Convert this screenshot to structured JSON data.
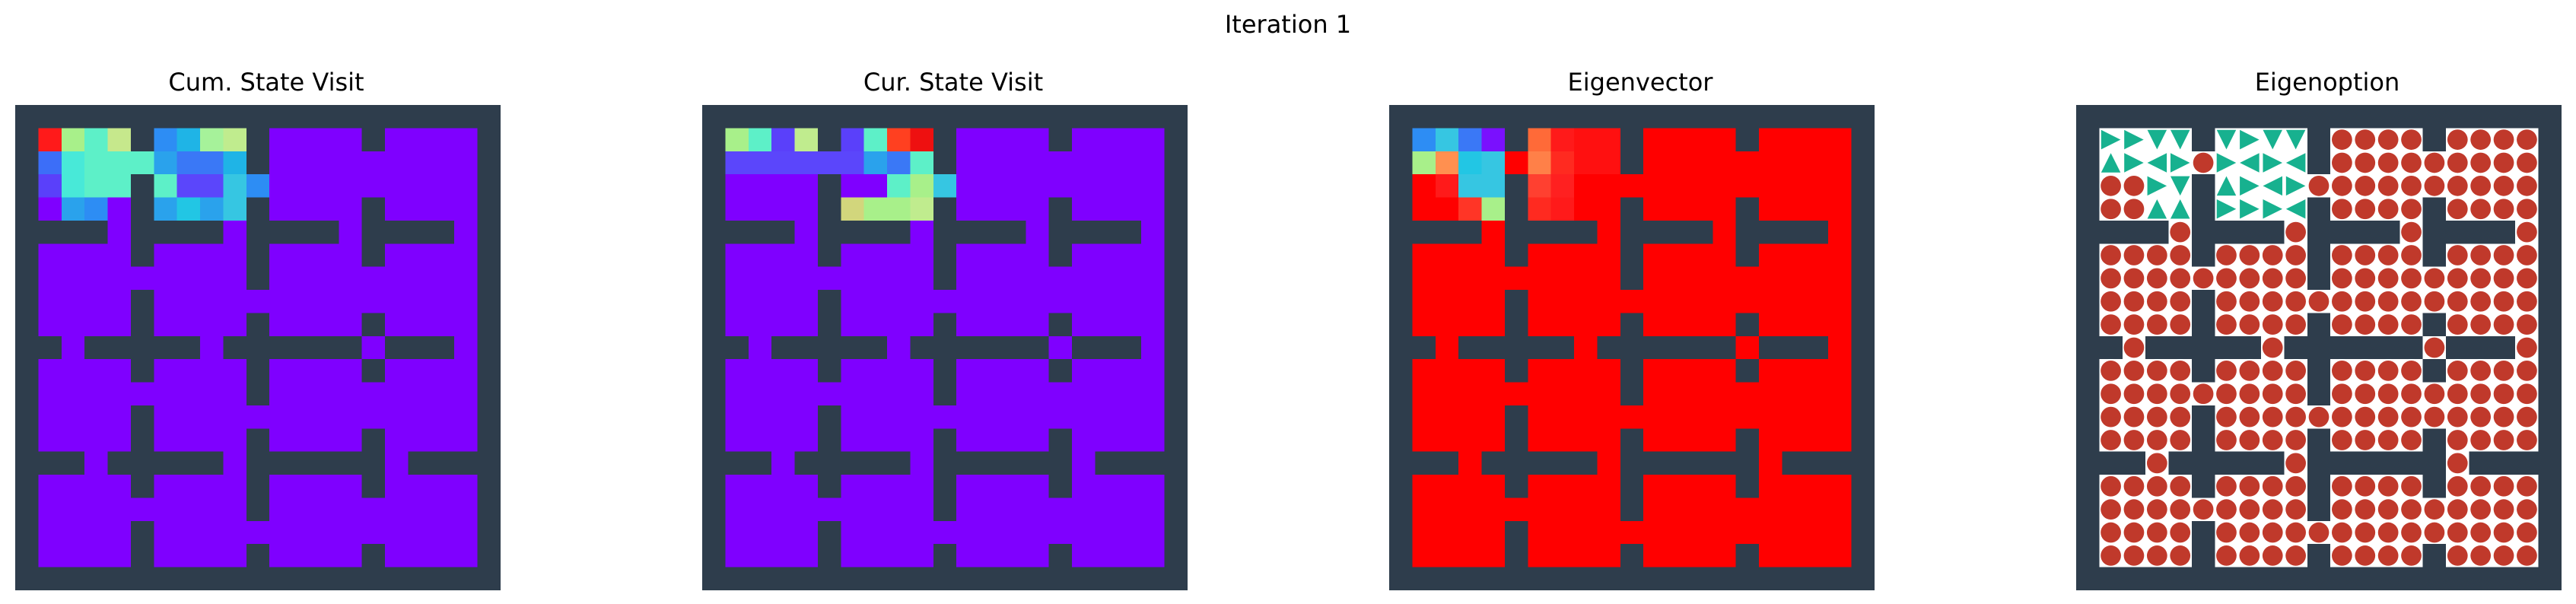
{
  "figure_title": "Iteration 1",
  "panels": [
    {
      "title": "Cum. State Visit",
      "kind": "heat"
    },
    {
      "title": "Cur. State Visit",
      "kind": "heat"
    },
    {
      "title": "Eigenvector",
      "kind": "heat"
    },
    {
      "title": "Eigenoption",
      "kind": "policy"
    }
  ],
  "colors": {
    "wall": "#2e3d4c",
    "background": "#ffffff",
    "floor_visit": "#7f00ff",
    "floor_eigen": "#ff0000",
    "policy_circle": "#c0392b",
    "policy_arrow": "#17b18f"
  },
  "grid": {
    "size": 21,
    "layout": [
      "#####################",
      "#....#....#....#....#",
      "#.........#.........#",
      "#....#..............#",
      "#....#....#....#....#",
      "####.####.####.####.#",
      "#....#....#....#....#",
      "#.........#.........#",
      "#....#..............#",
      "#....#....#....#....#",
      "##.#####.######.###.#",
      "#....#....#....#....#",
      "#.........#.........#",
      "#....#..............#",
      "#....#....#....#....#",
      "###.#####.######.####",
      "#....#....#....#....#",
      "#.........#.........#",
      "#....#..............#",
      "#....#....#....#....#",
      "#####################"
    ]
  },
  "heat_overrides": {
    "cum_state_visit": [
      [
        1,
        1,
        "#ff1a1a"
      ],
      [
        1,
        2,
        "#a8f08a"
      ],
      [
        1,
        3,
        "#5df0c8"
      ],
      [
        1,
        4,
        "#c6e88c"
      ],
      [
        1,
        6,
        "#2d8df4"
      ],
      [
        1,
        7,
        "#1fb4e6"
      ],
      [
        1,
        8,
        "#a6f29a"
      ],
      [
        1,
        9,
        "#c0ec8e"
      ],
      [
        2,
        1,
        "#3c6ef8"
      ],
      [
        2,
        2,
        "#48e9d8"
      ],
      [
        2,
        3,
        "#5df0c8"
      ],
      [
        2,
        4,
        "#5df0c8"
      ],
      [
        2,
        5,
        "#5df0c8"
      ],
      [
        2,
        6,
        "#2aa2ec"
      ],
      [
        2,
        7,
        "#3a78f6"
      ],
      [
        2,
        8,
        "#3a78f6"
      ],
      [
        2,
        9,
        "#1fb4e6"
      ],
      [
        3,
        1,
        "#5a40fa"
      ],
      [
        3,
        2,
        "#48e9d8"
      ],
      [
        3,
        3,
        "#5df0c8"
      ],
      [
        3,
        4,
        "#5df0c8"
      ],
      [
        3,
        6,
        "#5df0c8"
      ],
      [
        3,
        7,
        "#5b46fb"
      ],
      [
        3,
        8,
        "#5b46fb"
      ],
      [
        3,
        9,
        "#36c6e2"
      ],
      [
        3,
        10,
        "#2d8df4"
      ],
      [
        4,
        2,
        "#2aa2ec"
      ],
      [
        4,
        3,
        "#2d8df4"
      ],
      [
        4,
        6,
        "#2aa2ec"
      ],
      [
        4,
        7,
        "#22c6e4"
      ],
      [
        4,
        8,
        "#2aa2ec"
      ],
      [
        4,
        9,
        "#36c6e2"
      ]
    ],
    "cur_state_visit": [
      [
        1,
        1,
        "#a8f08a"
      ],
      [
        1,
        2,
        "#5df0c8"
      ],
      [
        1,
        3,
        "#5a40fa"
      ],
      [
        1,
        4,
        "#c0ec8e"
      ],
      [
        1,
        6,
        "#5a40fa"
      ],
      [
        1,
        7,
        "#5df0c8"
      ],
      [
        1,
        8,
        "#ff4020"
      ],
      [
        1,
        9,
        "#ee1010"
      ],
      [
        2,
        1,
        "#5b46fb"
      ],
      [
        2,
        2,
        "#5b46fb"
      ],
      [
        2,
        3,
        "#5b46fb"
      ],
      [
        2,
        4,
        "#5b46fb"
      ],
      [
        2,
        5,
        "#5b46fb"
      ],
      [
        2,
        6,
        "#5b46fb"
      ],
      [
        2,
        7,
        "#2aa2ec"
      ],
      [
        2,
        8,
        "#3a78f6"
      ],
      [
        2,
        9,
        "#5df0c8"
      ],
      [
        3,
        8,
        "#5df0c8"
      ],
      [
        3,
        9,
        "#a8f08a"
      ],
      [
        3,
        10,
        "#36c6e2"
      ],
      [
        4,
        6,
        "#d2d67c"
      ],
      [
        4,
        7,
        "#a8f08a"
      ],
      [
        4,
        8,
        "#a8f08a"
      ],
      [
        4,
        9,
        "#c0ec8e"
      ]
    ],
    "eigenvector": [
      [
        1,
        1,
        "#2d8df4"
      ],
      [
        1,
        2,
        "#36c6e2"
      ],
      [
        1,
        3,
        "#3a78f6"
      ],
      [
        1,
        4,
        "#7a10fe"
      ],
      [
        1,
        6,
        "#ff6a38"
      ],
      [
        1,
        7,
        "#ff1a1a"
      ],
      [
        1,
        8,
        "#ff1010"
      ],
      [
        1,
        9,
        "#ff1010"
      ],
      [
        2,
        1,
        "#a8f08a"
      ],
      [
        2,
        2,
        "#ff9050"
      ],
      [
        2,
        3,
        "#22c6e4"
      ],
      [
        2,
        4,
        "#36c6e2"
      ],
      [
        2,
        6,
        "#ff8048"
      ],
      [
        2,
        7,
        "#ff2a20"
      ],
      [
        2,
        8,
        "#ff1010"
      ],
      [
        2,
        9,
        "#ff1010"
      ],
      [
        3,
        2,
        "#ff1a1a"
      ],
      [
        3,
        3,
        "#36c6e2"
      ],
      [
        3,
        4,
        "#36c6e2"
      ],
      [
        3,
        6,
        "#ff4030"
      ],
      [
        3,
        7,
        "#ff2020"
      ],
      [
        4,
        3,
        "#ff3526"
      ],
      [
        4,
        4,
        "#a8f08a"
      ],
      [
        4,
        6,
        "#ff2a20"
      ],
      [
        4,
        7,
        "#ff1a1a"
      ]
    ]
  },
  "policy_arrows": [
    [
      1,
      1,
      "R"
    ],
    [
      1,
      2,
      "R"
    ],
    [
      1,
      3,
      "D"
    ],
    [
      1,
      4,
      "D"
    ],
    [
      1,
      6,
      "D"
    ],
    [
      1,
      7,
      "R"
    ],
    [
      1,
      8,
      "D"
    ],
    [
      1,
      9,
      "D"
    ],
    [
      2,
      1,
      "U"
    ],
    [
      2,
      2,
      "R"
    ],
    [
      2,
      3,
      "L"
    ],
    [
      2,
      4,
      "R"
    ],
    [
      2,
      6,
      "R"
    ],
    [
      2,
      7,
      "L"
    ],
    [
      2,
      8,
      "R"
    ],
    [
      2,
      9,
      "L"
    ],
    [
      3,
      3,
      "R"
    ],
    [
      3,
      4,
      "D"
    ],
    [
      3,
      6,
      "U"
    ],
    [
      3,
      7,
      "R"
    ],
    [
      3,
      8,
      "L"
    ],
    [
      3,
      9,
      "R"
    ],
    [
      4,
      3,
      "U"
    ],
    [
      4,
      4,
      "U"
    ],
    [
      4,
      6,
      "R"
    ],
    [
      4,
      7,
      "R"
    ],
    [
      4,
      8,
      "R"
    ],
    [
      4,
      9,
      "L"
    ]
  ]
}
